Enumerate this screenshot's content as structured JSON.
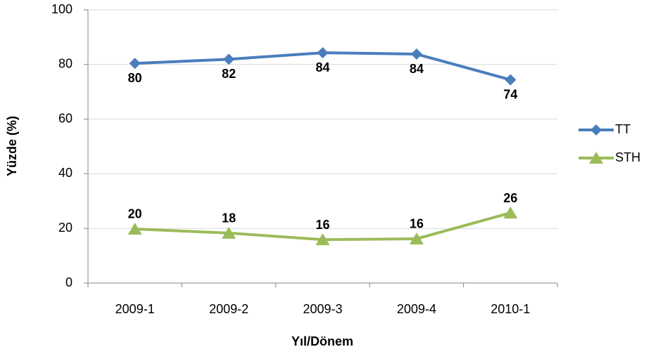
{
  "chart_data": {
    "type": "line",
    "x_label": "Yıl/Dönem",
    "y_label": "Yüzde (%)",
    "categories": [
      "2009-1",
      "2009-2",
      "2009-3",
      "2009-4",
      "2010-1"
    ],
    "series": [
      {
        "name": "TT",
        "color": "#4a7ebb",
        "marker": "diamond",
        "label_position": "below",
        "values": [
          80.4,
          81.9,
          84.3,
          83.8,
          74.4
        ],
        "value_labels": [
          "80",
          "82",
          "84",
          "84",
          "74"
        ]
      },
      {
        "name": "STH",
        "color": "#9bbb59",
        "marker": "triangle",
        "label_position": "above",
        "values": [
          19.8,
          18.3,
          15.9,
          16.2,
          25.7
        ],
        "value_labels": [
          "20",
          "18",
          "16",
          "16",
          "26"
        ]
      }
    ],
    "ylim": [
      0,
      100
    ],
    "yticks": [
      0,
      20,
      40,
      60,
      80,
      100
    ],
    "grid": true,
    "legend": "right"
  }
}
